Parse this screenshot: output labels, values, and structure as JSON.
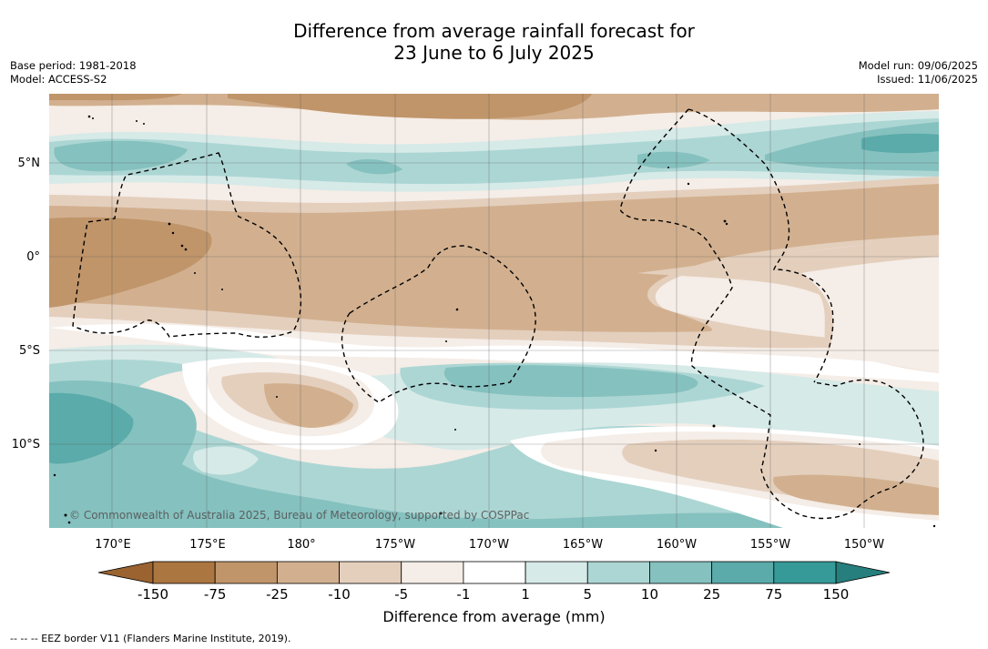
{
  "title": {
    "line1": "Difference from average rainfall forecast for",
    "line2": "23 June to 6 July 2025"
  },
  "meta": {
    "base_period": "Base period: 1981-2018",
    "model": "Model: ACCESS-S2",
    "model_run": "Model run: 09/06/2025",
    "issued": "Issued: 11/06/2025"
  },
  "map": {
    "lon_labels": [
      "170°E",
      "175°E",
      "180°",
      "175°W",
      "170°W",
      "165°W",
      "160°W",
      "155°W",
      "150°W"
    ],
    "lat_labels": [
      "5°N",
      "0°",
      "5°S",
      "10°S"
    ],
    "copyright": "© Commonwealth of Australia 2025, Bureau of Meteorology, supported by COSPPac"
  },
  "colorbar": {
    "ticks": [
      "-150",
      "-75",
      "-25",
      "-10",
      "-5",
      "-1",
      "1",
      "5",
      "10",
      "25",
      "75",
      "150"
    ],
    "colors": [
      "#ab7640",
      "#c0956a",
      "#d2b08f",
      "#e4cfbd",
      "#f5ede7",
      "#ffffff",
      "#d6eae8",
      "#acd6d4",
      "#85c1bf",
      "#5aabaa",
      "#359a98"
    ],
    "end_low_color": "#9a6330",
    "end_high_color": "#267f7d",
    "label": "Difference from average (mm)"
  },
  "footer": "-- -- -- EEZ border V11 (Flanders Marine Institute, 2019)."
}
